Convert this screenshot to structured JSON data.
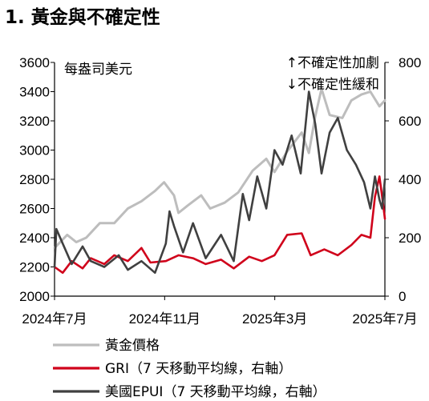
{
  "title": "1. 黃金與不確定性",
  "chart_data": {
    "type": "line",
    "left_axis_unit": "每盎司美元",
    "annotation_up": "↑不確定性加劇",
    "annotation_down": "↓不確定性緩和",
    "x_ticks": [
      "2024年7月",
      "2024年11月",
      "2025年3月",
      "2025年7月"
    ],
    "x_range": [
      "2024-07-01",
      "2025-07-01"
    ],
    "ylim_left": [
      2000,
      3600
    ],
    "yticks_left": [
      "3600",
      "3400",
      "3200",
      "3000",
      "2800",
      "2600",
      "2400",
      "2200",
      "2000"
    ],
    "ylim_right": [
      0,
      800
    ],
    "yticks_right": [
      "800",
      "600",
      "400",
      "200",
      "0"
    ],
    "colors": {
      "gold": "#bdbdbd",
      "gri": "#d0021b",
      "epui": "#404040"
    },
    "series": [
      {
        "key": "gold",
        "name": "黃金價格",
        "axis": "left",
        "points": [
          [
            "2024-07-01",
            2330
          ],
          [
            "2024-07-15",
            2420
          ],
          [
            "2024-07-25",
            2370
          ],
          [
            "2024-08-05",
            2400
          ],
          [
            "2024-08-20",
            2500
          ],
          [
            "2024-09-05",
            2500
          ],
          [
            "2024-09-20",
            2600
          ],
          [
            "2024-10-05",
            2650
          ],
          [
            "2024-10-20",
            2720
          ],
          [
            "2024-10-30",
            2780
          ],
          [
            "2024-11-10",
            2690
          ],
          [
            "2024-11-15",
            2570
          ],
          [
            "2024-11-25",
            2620
          ],
          [
            "2024-12-10",
            2690
          ],
          [
            "2024-12-20",
            2600
          ],
          [
            "2025-01-05",
            2640
          ],
          [
            "2025-01-20",
            2710
          ],
          [
            "2025-02-05",
            2860
          ],
          [
            "2025-02-20",
            2940
          ],
          [
            "2025-03-01",
            2850
          ],
          [
            "2025-03-15",
            2990
          ],
          [
            "2025-03-31",
            3120
          ],
          [
            "2025-04-08",
            2980
          ],
          [
            "2025-04-15",
            3230
          ],
          [
            "2025-04-22",
            3420
          ],
          [
            "2025-05-01",
            3240
          ],
          [
            "2025-05-15",
            3220
          ],
          [
            "2025-05-25",
            3340
          ],
          [
            "2025-06-05",
            3380
          ],
          [
            "2025-06-15",
            3400
          ],
          [
            "2025-06-25",
            3300
          ],
          [
            "2025-07-01",
            3340
          ]
        ]
      },
      {
        "key": "gri",
        "name": "GRI（7 天移動平均線，右軸）",
        "axis": "right",
        "points": [
          [
            "2024-07-01",
            100
          ],
          [
            "2024-07-10",
            80
          ],
          [
            "2024-07-20",
            120
          ],
          [
            "2024-08-01",
            95
          ],
          [
            "2024-08-10",
            130
          ],
          [
            "2024-08-25",
            110
          ],
          [
            "2024-09-05",
            140
          ],
          [
            "2024-09-20",
            120
          ],
          [
            "2024-10-05",
            165
          ],
          [
            "2024-10-15",
            115
          ],
          [
            "2024-11-01",
            120
          ],
          [
            "2024-11-15",
            140
          ],
          [
            "2024-12-01",
            130
          ],
          [
            "2024-12-15",
            110
          ],
          [
            "2025-01-01",
            125
          ],
          [
            "2025-01-15",
            95
          ],
          [
            "2025-02-01",
            135
          ],
          [
            "2025-02-15",
            120
          ],
          [
            "2025-03-01",
            140
          ],
          [
            "2025-03-15",
            210
          ],
          [
            "2025-03-31",
            215
          ],
          [
            "2025-04-10",
            140
          ],
          [
            "2025-04-25",
            160
          ],
          [
            "2025-05-10",
            140
          ],
          [
            "2025-05-25",
            175
          ],
          [
            "2025-06-05",
            210
          ],
          [
            "2025-06-15",
            200
          ],
          [
            "2025-06-20",
            340
          ],
          [
            "2025-06-25",
            410
          ],
          [
            "2025-06-28",
            340
          ],
          [
            "2025-07-01",
            265
          ]
        ]
      },
      {
        "key": "epui",
        "name": "美國EPUI（7 天移動平均線，右軸）",
        "axis": "right",
        "points": [
          [
            "2024-07-01",
            100
          ],
          [
            "2024-07-03",
            230
          ],
          [
            "2024-07-10",
            180
          ],
          [
            "2024-07-20",
            110
          ],
          [
            "2024-08-01",
            170
          ],
          [
            "2024-08-10",
            120
          ],
          [
            "2024-08-25",
            100
          ],
          [
            "2024-09-10",
            140
          ],
          [
            "2024-09-20",
            90
          ],
          [
            "2024-10-05",
            120
          ],
          [
            "2024-10-20",
            80
          ],
          [
            "2024-11-01",
            180
          ],
          [
            "2024-11-05",
            290
          ],
          [
            "2024-11-10",
            240
          ],
          [
            "2024-11-20",
            150
          ],
          [
            "2024-12-01",
            250
          ],
          [
            "2024-12-15",
            130
          ],
          [
            "2025-01-01",
            210
          ],
          [
            "2025-01-15",
            120
          ],
          [
            "2025-01-25",
            350
          ],
          [
            "2025-02-01",
            260
          ],
          [
            "2025-02-10",
            410
          ],
          [
            "2025-02-20",
            300
          ],
          [
            "2025-03-01",
            500
          ],
          [
            "2025-03-10",
            450
          ],
          [
            "2025-03-20",
            550
          ],
          [
            "2025-03-30",
            420
          ],
          [
            "2025-04-08",
            700
          ],
          [
            "2025-04-15",
            590
          ],
          [
            "2025-04-22",
            420
          ],
          [
            "2025-05-01",
            560
          ],
          [
            "2025-05-10",
            610
          ],
          [
            "2025-05-20",
            500
          ],
          [
            "2025-05-30",
            450
          ],
          [
            "2025-06-08",
            390
          ],
          [
            "2025-06-15",
            300
          ],
          [
            "2025-06-20",
            410
          ],
          [
            "2025-06-25",
            330
          ],
          [
            "2025-06-28",
            300
          ],
          [
            "2025-07-01",
            400
          ]
        ]
      }
    ],
    "legend": [
      {
        "key": "gold",
        "label": "黃金價格"
      },
      {
        "key": "gri",
        "label": "GRI（7 天移動平均線，右軸）"
      },
      {
        "key": "epui",
        "label": "美國EPUI（7 天移動平均線，右軸）"
      }
    ]
  }
}
